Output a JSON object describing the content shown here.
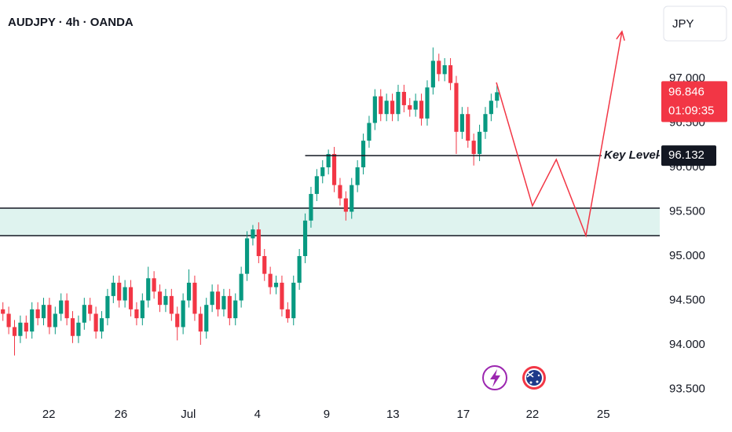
{
  "chart_data": {
    "type": "candlestick",
    "title": "AUDJPY · 4h · OANDA",
    "currency": "JPY",
    "countdown": "01:09:35",
    "annotation": "Key Level -",
    "up_color": "#089981",
    "down_color": "#f23645",
    "open": [
      94.4,
      94.35,
      94.2,
      94.1,
      94.25,
      94.15,
      94.4,
      94.3,
      94.45,
      94.2,
      94.35,
      94.5,
      94.3,
      94.1,
      94.25,
      94.45,
      94.35,
      94.15,
      94.3,
      94.55,
      94.7,
      94.5,
      94.65,
      94.4,
      94.3,
      94.5,
      94.75,
      94.6,
      94.45,
      94.55,
      94.35,
      94.2,
      94.5,
      94.7,
      94.35,
      94.15,
      94.45,
      94.6,
      94.4,
      94.55,
      94.3,
      94.5,
      94.8,
      95.2,
      95.3,
      95.0,
      94.8,
      94.65,
      94.7,
      94.4,
      94.3,
      94.7,
      95.0,
      95.4,
      95.7,
      95.9,
      96.0,
      96.15,
      95.8,
      95.65,
      95.5,
      95.8,
      96.0,
      96.3,
      96.5,
      96.8,
      96.6,
      96.75,
      96.6,
      96.85,
      96.7,
      96.65,
      96.75,
      96.55,
      96.9,
      97.2,
      97.05,
      97.15,
      96.95,
      96.4,
      96.6,
      96.3,
      96.15,
      96.4,
      96.6,
      96.75
    ],
    "high": [
      94.48,
      94.43,
      94.28,
      94.33,
      94.33,
      94.48,
      94.48,
      94.53,
      94.53,
      94.43,
      94.58,
      94.58,
      94.38,
      94.33,
      94.53,
      94.53,
      94.43,
      94.38,
      94.63,
      94.78,
      94.78,
      94.73,
      94.73,
      94.48,
      94.58,
      94.88,
      94.83,
      94.68,
      94.63,
      94.63,
      94.43,
      94.58,
      94.85,
      94.78,
      94.43,
      94.53,
      94.68,
      94.68,
      94.63,
      94.63,
      94.58,
      94.88,
      95.28,
      95.35,
      95.38,
      95.08,
      94.88,
      94.78,
      94.78,
      94.48,
      94.78,
      95.08,
      95.48,
      95.78,
      95.98,
      96.08,
      96.2,
      96.23,
      95.88,
      95.73,
      95.88,
      96.08,
      96.38,
      96.58,
      96.88,
      96.88,
      96.83,
      96.83,
      96.93,
      96.93,
      96.78,
      96.83,
      96.83,
      96.98,
      97.35,
      97.28,
      97.23,
      97.23,
      97.03,
      96.68,
      96.68,
      96.38,
      96.48,
      96.68,
      96.83,
      96.92
    ],
    "low": [
      94.27,
      94.12,
      93.88,
      94.02,
      94.07,
      94.07,
      94.22,
      94.22,
      94.12,
      94.12,
      94.27,
      94.22,
      94.02,
      94.02,
      94.17,
      94.27,
      94.07,
      94.07,
      94.22,
      94.47,
      94.42,
      94.42,
      94.32,
      94.22,
      94.22,
      94.42,
      94.52,
      94.37,
      94.37,
      94.27,
      94.05,
      94.12,
      94.42,
      94.27,
      94.0,
      94.07,
      94.37,
      94.32,
      94.32,
      94.22,
      94.22,
      94.42,
      94.72,
      95.12,
      94.92,
      94.72,
      94.57,
      94.57,
      94.32,
      94.25,
      94.22,
      94.62,
      94.92,
      95.32,
      95.62,
      95.82,
      95.92,
      95.72,
      95.57,
      95.4,
      95.42,
      95.72,
      95.92,
      96.22,
      96.42,
      96.52,
      96.52,
      96.52,
      96.52,
      96.62,
      96.57,
      96.57,
      96.47,
      96.47,
      96.82,
      96.97,
      96.97,
      96.87,
      96.15,
      96.32,
      96.22,
      96.02,
      96.07,
      96.32,
      96.52,
      96.67
    ],
    "close": [
      94.35,
      94.2,
      94.1,
      94.25,
      94.15,
      94.4,
      94.3,
      94.45,
      94.2,
      94.35,
      94.5,
      94.3,
      94.1,
      94.25,
      94.45,
      94.35,
      94.15,
      94.3,
      94.55,
      94.7,
      94.5,
      94.65,
      94.4,
      94.3,
      94.5,
      94.75,
      94.6,
      94.45,
      94.55,
      94.35,
      94.2,
      94.5,
      94.7,
      94.35,
      94.15,
      94.45,
      94.6,
      94.4,
      94.55,
      94.3,
      94.5,
      94.8,
      95.2,
      95.3,
      95.0,
      94.8,
      94.65,
      94.7,
      94.4,
      94.3,
      94.7,
      95.0,
      95.4,
      95.7,
      95.9,
      96.0,
      96.15,
      95.8,
      95.65,
      95.5,
      95.8,
      96.0,
      96.3,
      96.5,
      96.8,
      96.6,
      96.75,
      96.6,
      96.85,
      96.7,
      96.65,
      96.75,
      96.55,
      96.9,
      97.2,
      97.05,
      97.15,
      96.95,
      96.4,
      96.6,
      96.3,
      96.15,
      96.4,
      96.6,
      96.75,
      96.846
    ],
    "xlim": [
      -0.5,
      113
    ],
    "ylim": [
      93.372,
      97.885
    ],
    "xticks": [
      {
        "value": 7.9,
        "label": "22"
      },
      {
        "value": 20.3,
        "label": "26"
      },
      {
        "value": 31.9,
        "label": "Jul"
      },
      {
        "value": 43.8,
        "label": "4"
      },
      {
        "value": 55.7,
        "label": "9"
      },
      {
        "value": 67.1,
        "label": "13"
      },
      {
        "value": 79.2,
        "label": "17"
      },
      {
        "value": 91.1,
        "label": "22"
      },
      {
        "value": 103.3,
        "label": "25"
      }
    ],
    "yticks": [
      {
        "value": 97,
        "label": "97.000"
      },
      {
        "value": 96.5,
        "label": "96.500"
      },
      {
        "value": 96,
        "label": "96.000"
      },
      {
        "value": 95.5,
        "label": "95.500"
      },
      {
        "value": 95,
        "label": "95.000"
      },
      {
        "value": 94.5,
        "label": "94.500"
      },
      {
        "value": 94,
        "label": "94.000"
      },
      {
        "value": 93.5,
        "label": "93.500"
      }
    ],
    "key_level": 96.132,
    "key_level_start": 52.0,
    "zone": [
      95.23,
      95.54
    ],
    "projection": {
      "color": "#f23645",
      "x": [
        84.9,
        91.1,
        95.2,
        100.3,
        106.5
      ],
      "y": [
        96.956,
        95.566,
        96.088,
        95.23,
        97.53
      ]
    }
  }
}
